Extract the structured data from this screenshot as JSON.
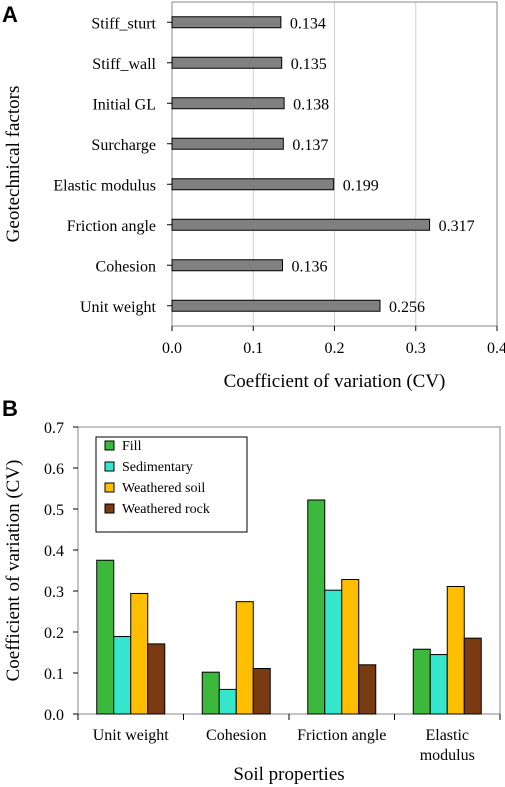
{
  "chart_data": [
    {
      "panel": "A",
      "type": "bar",
      "orientation": "horizontal",
      "xlabel": "Coefficient  of variation (CV)",
      "ylabel": "Geotechnical  factors",
      "xlim": [
        0.0,
        0.4
      ],
      "xticks": [
        "0.0",
        "0.1",
        "0.2",
        "0.3",
        "0.4"
      ],
      "xtick_values": [
        0.0,
        0.1,
        0.2,
        0.3,
        0.4
      ],
      "grid": "vertical",
      "bar_color": "#808080",
      "categories": [
        "Stiff_sturt",
        "Stiff_wall",
        "Initial GL",
        "Surcharge",
        "Elastic modulus",
        "Friction angle",
        "Cohesion",
        "Unit weight"
      ],
      "values": [
        0.134,
        0.135,
        0.138,
        0.137,
        0.199,
        0.317,
        0.136,
        0.256
      ],
      "value_labels": [
        "0.134",
        "0.135",
        "0.138",
        "0.137",
        "0.199",
        "0.317",
        "0.136",
        "0.256"
      ]
    },
    {
      "panel": "B",
      "type": "bar",
      "orientation": "vertical",
      "xlabel": "Soil properties",
      "ylabel": "Coefficient  of variation (CV)",
      "ylim": [
        0.0,
        0.7
      ],
      "yticks": [
        "0.0",
        "0.1",
        "0.2",
        "0.3",
        "0.4",
        "0.5",
        "0.6",
        "0.7"
      ],
      "ytick_values": [
        0.0,
        0.1,
        0.2,
        0.3,
        0.4,
        0.5,
        0.6,
        0.7
      ],
      "legend_position": "top-left",
      "categories": [
        [
          "Unit weight"
        ],
        [
          "Cohesion"
        ],
        [
          "Friction angle"
        ],
        [
          "Elastic",
          "modulus"
        ]
      ],
      "series": [
        {
          "name": "Fill",
          "color": "#3cb83c",
          "values": [
            0.375,
            0.102,
            0.522,
            0.158
          ]
        },
        {
          "name": "Sedimentary",
          "color": "#33e6cc",
          "values": [
            0.189,
            0.06,
            0.302,
            0.145
          ]
        },
        {
          "name": "Weathered soil",
          "color": "#ffbf00",
          "values": [
            0.294,
            0.274,
            0.328,
            0.311
          ]
        },
        {
          "name": "Weathered rock",
          "color": "#7a3a12",
          "values": [
            0.171,
            0.111,
            0.12,
            0.185
          ]
        }
      ]
    }
  ],
  "panels": {
    "a_label": "A",
    "b_label": "B"
  }
}
